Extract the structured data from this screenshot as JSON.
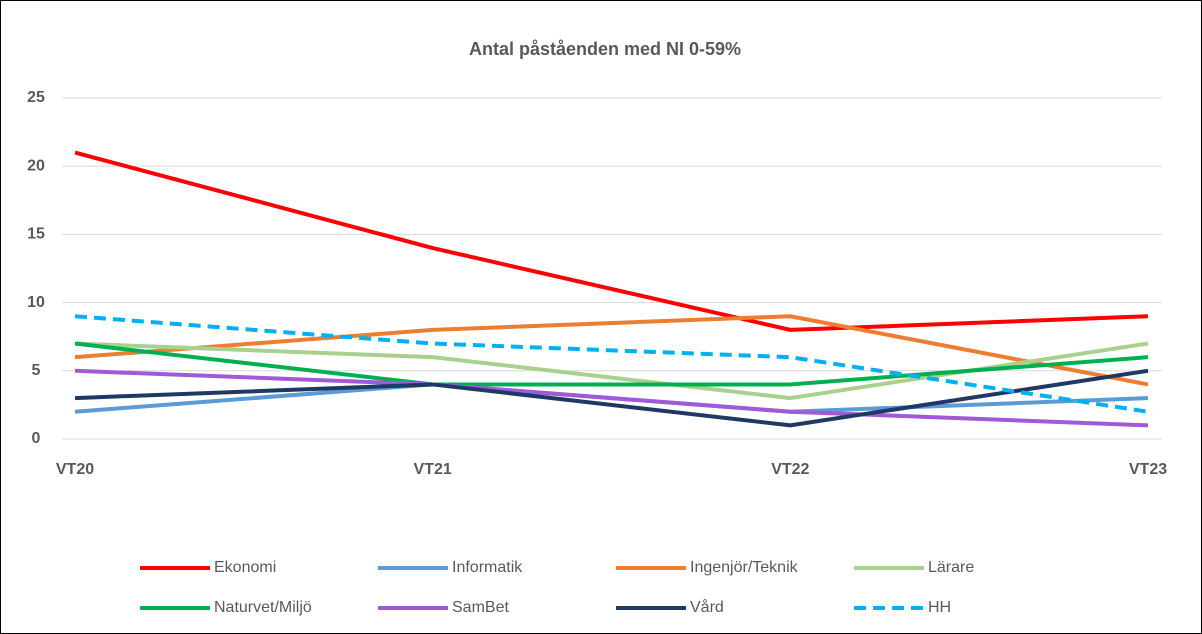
{
  "chart_data": {
    "type": "line",
    "title": "Antal påståenden med NI 0-59%",
    "categories": [
      "VT20",
      "VT21",
      "VT22",
      "VT23"
    ],
    "series": [
      {
        "name": "Ekonomi",
        "color": "#ff0000",
        "values": [
          21,
          14,
          8,
          9
        ]
      },
      {
        "name": "Informatik",
        "color": "#5b9bd5",
        "values": [
          2,
          4,
          2,
          3
        ]
      },
      {
        "name": "Ingenjör/Teknik",
        "color": "#ed7d31",
        "values": [
          6,
          8,
          9,
          4
        ]
      },
      {
        "name": "Lärare",
        "color": "#a9d18e",
        "values": [
          7,
          6,
          3,
          7
        ]
      },
      {
        "name": "Naturvet/Miljö",
        "color": "#00b050",
        "values": [
          7,
          4,
          4,
          6
        ]
      },
      {
        "name": "SamBet",
        "color": "#a05ad6",
        "values": [
          5,
          4,
          2,
          1
        ]
      },
      {
        "name": "Vård",
        "color": "#203864",
        "values": [
          3,
          4,
          1,
          5
        ]
      },
      {
        "name": "HH",
        "color": "#00b0f0",
        "dashed": true,
        "values": [
          9,
          7,
          6,
          2
        ]
      }
    ],
    "ylim": [
      0,
      25
    ],
    "yticks": [
      0,
      5,
      10,
      15,
      20,
      25
    ],
    "grid": true,
    "legend": "bottom"
  }
}
